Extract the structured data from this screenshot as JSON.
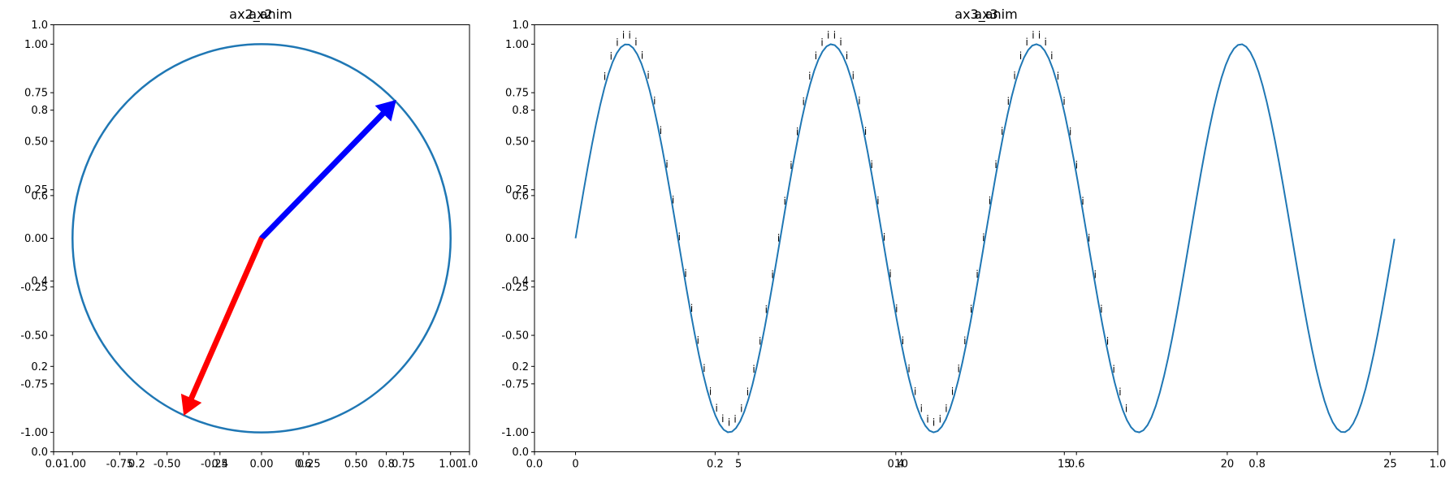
{
  "chart_data": [
    {
      "type": "line",
      "panel": "circle",
      "titles": [
        "ax2",
        "ax2_anim"
      ],
      "frame_axis": {
        "x_ticks": [
          "0.0",
          "0.2",
          "0.4",
          "0.6",
          "0.8",
          "1.0"
        ],
        "y_ticks": [
          "0.0",
          "0.2",
          "0.4",
          "0.6",
          "0.8",
          "1.0"
        ]
      },
      "data_axis": {
        "xlim": [
          -1.1,
          1.1
        ],
        "ylim": [
          -1.1,
          1.1
        ],
        "x_ticks": [
          "-1.00",
          "-0.75",
          "-0.50",
          "-0.25",
          "0.00",
          "0.25",
          "0.50",
          "0.75",
          "1.00"
        ],
        "y_ticks": [
          "-1.00",
          "-0.75",
          "-0.50",
          "-0.25",
          "0.00",
          "0.25",
          "0.50",
          "0.75",
          "1.00"
        ]
      },
      "circle": {
        "center": [
          0,
          0
        ],
        "radius": 1.0,
        "color": "#1f77b4"
      },
      "arrows": [
        {
          "name": "blue-arrow",
          "from": [
            0,
            0
          ],
          "to": [
            0.71,
            0.71
          ],
          "color": "#0000ff"
        },
        {
          "name": "red-arrow",
          "from": [
            0,
            0
          ],
          "to": [
            -0.41,
            -0.91
          ],
          "color": "#ff0000"
        }
      ]
    },
    {
      "type": "line",
      "panel": "sine",
      "titles": [
        "ax3",
        "ax3_anim"
      ],
      "frame_axis": {
        "x_ticks": [
          "0.0",
          "0.2",
          "0.4",
          "0.6",
          "0.8",
          "1.0"
        ],
        "y_ticks": [
          "0.0",
          "0.2",
          "0.4",
          "0.6",
          "0.8",
          "1.0"
        ]
      },
      "data_axis": {
        "xlim": [
          -1.26,
          26.46
        ],
        "ylim": [
          -1.1,
          1.1
        ],
        "x_ticks": [
          "0",
          "5",
          "10",
          "15",
          "20",
          "25"
        ],
        "y_ticks": [
          "-1.00",
          "-0.75",
          "-0.50",
          "-0.25",
          "0.00",
          "0.25",
          "0.50",
          "0.75",
          "1.00"
        ]
      },
      "series": [
        {
          "name": "sin",
          "function": "sin(x)",
          "x_range": [
            0,
            25.13
          ],
          "points": 200,
          "color": "#1f77b4"
        }
      ],
      "annotations": {
        "glyph": "i",
        "x_range": [
          0.9,
          16.9
        ],
        "count": 85,
        "offset_y": 0.05
      }
    }
  ]
}
